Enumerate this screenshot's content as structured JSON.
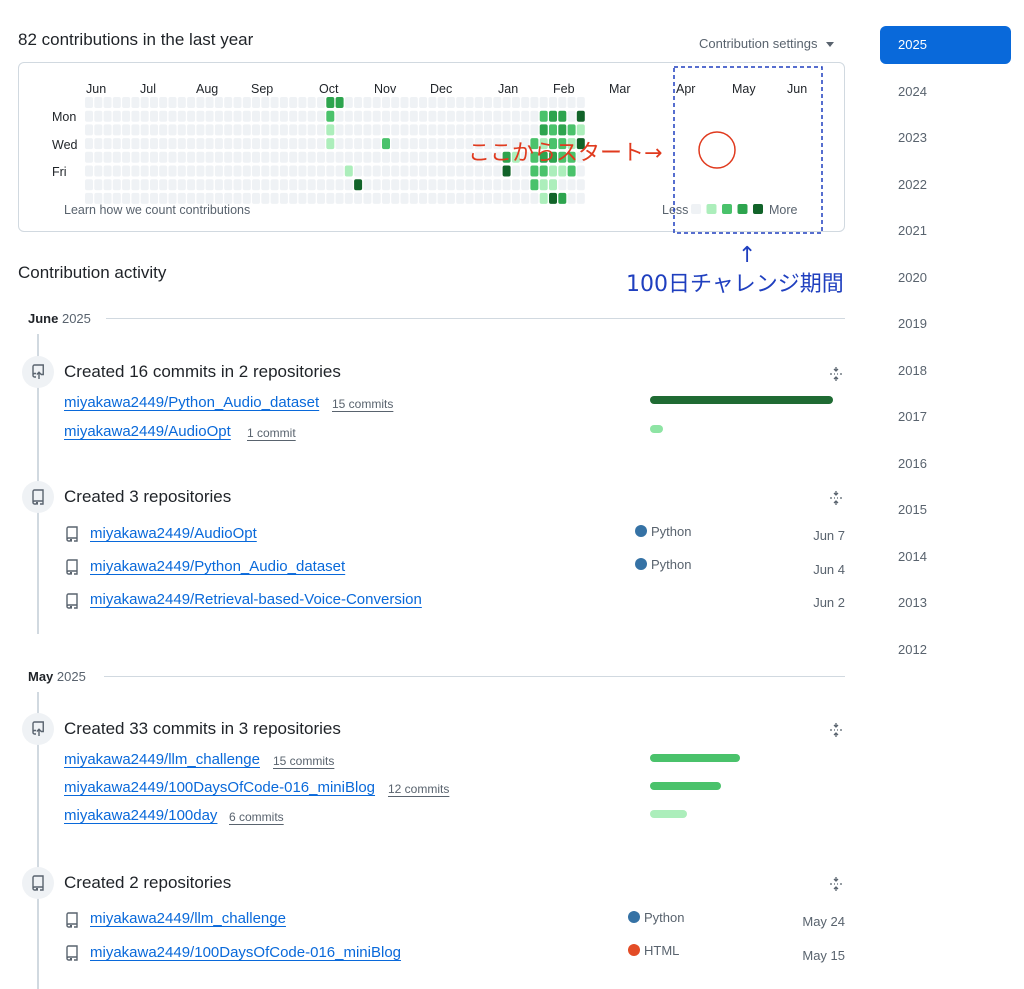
{
  "header": {
    "contributions_title": "82 contributions in the last year",
    "settings_label": "Contribution settings"
  },
  "graph": {
    "months": [
      "Jun",
      "Jul",
      "Aug",
      "Sep",
      "Oct",
      "Nov",
      "Dec",
      "Jan",
      "Feb",
      "Mar",
      "Apr",
      "May",
      "Jun"
    ],
    "day_labels": [
      "Mon",
      "Wed",
      "Fri"
    ],
    "learn_link": "Learn how we count contributions",
    "legend_less": "Less",
    "legend_more": "More",
    "level_colors": [
      "#eff2f5",
      "#aceebb",
      "#4ac26b",
      "#2da44e",
      "#116329"
    ],
    "contributions": [
      {
        "week": 26,
        "day": 0,
        "level": 3
      },
      {
        "week": 26,
        "day": 1,
        "level": 2
      },
      {
        "week": 26,
        "day": 2,
        "level": 1
      },
      {
        "week": 26,
        "day": 3,
        "level": 1
      },
      {
        "week": 27,
        "day": 0,
        "level": 3
      },
      {
        "week": 28,
        "day": 5,
        "level": 1
      },
      {
        "week": 29,
        "day": 6,
        "level": 4
      },
      {
        "week": 32,
        "day": 3,
        "level": 2
      },
      {
        "week": 45,
        "day": 4,
        "level": 3
      },
      {
        "week": 45,
        "day": 5,
        "level": 4
      },
      {
        "week": 46,
        "day": 4,
        "level": 1
      },
      {
        "week": 48,
        "day": 3,
        "level": 2
      },
      {
        "week": 48,
        "day": 4,
        "level": 2
      },
      {
        "week": 48,
        "day": 5,
        "level": 2
      },
      {
        "week": 48,
        "day": 6,
        "level": 2
      },
      {
        "week": 49,
        "day": 1,
        "level": 2
      },
      {
        "week": 49,
        "day": 2,
        "level": 3
      },
      {
        "week": 49,
        "day": 3,
        "level": 1
      },
      {
        "week": 49,
        "day": 4,
        "level": 3
      },
      {
        "week": 49,
        "day": 5,
        "level": 2
      },
      {
        "week": 49,
        "day": 6,
        "level": 1
      },
      {
        "week": 49,
        "day": 7,
        "level": 1
      },
      {
        "week": 50,
        "day": 1,
        "level": 3
      },
      {
        "week": 50,
        "day": 2,
        "level": 2
      },
      {
        "week": 50,
        "day": 3,
        "level": 2
      },
      {
        "week": 50,
        "day": 4,
        "level": 3
      },
      {
        "week": 50,
        "day": 5,
        "level": 1
      },
      {
        "week": 50,
        "day": 6,
        "level": 1
      },
      {
        "week": 50,
        "day": 7,
        "level": 4
      },
      {
        "week": 51,
        "day": 1,
        "level": 3
      },
      {
        "week": 51,
        "day": 2,
        "level": 3
      },
      {
        "week": 51,
        "day": 3,
        "level": 2
      },
      {
        "week": 51,
        "day": 4,
        "level": 2
      },
      {
        "week": 51,
        "day": 5,
        "level": 1
      },
      {
        "week": 51,
        "day": 7,
        "level": 3
      },
      {
        "week": 52,
        "day": 2,
        "level": 2
      },
      {
        "week": 52,
        "day": 3,
        "level": 1
      },
      {
        "week": 52,
        "day": 4,
        "level": 2
      },
      {
        "week": 52,
        "day": 5,
        "level": 2
      },
      {
        "week": 53,
        "day": 1,
        "level": 4
      },
      {
        "week": 53,
        "day": 2,
        "level": 1
      },
      {
        "week": 53,
        "day": 3,
        "level": 4
      }
    ]
  },
  "annotations": {
    "start_label": "ここからスタート→",
    "up_arrow": "↑",
    "period_label": "100日チャレンジ期間"
  },
  "activity": {
    "title": "Contribution activity",
    "sections": [
      {
        "month": "June",
        "year": "2025",
        "commits_title": "Created 16 commits in 2 repositories",
        "commit_repos": [
          {
            "name": "miyakawa2449/Python_Audio_dataset",
            "count": "15 commits",
            "fraction": 1.0,
            "color": "#1f6b33"
          },
          {
            "name": "miyakawa2449/AudioOpt",
            "count": "1 commit",
            "fraction": 0.07,
            "color": "#8ee4a4"
          }
        ],
        "repos_title": "Created 3 repositories",
        "created_repos": [
          {
            "name": "miyakawa2449/AudioOpt",
            "language": "Python",
            "lang_color": "#3572A5",
            "date": "Jun 7"
          },
          {
            "name": "miyakawa2449/Python_Audio_dataset",
            "language": "Python",
            "lang_color": "#3572A5",
            "date": "Jun 4"
          },
          {
            "name": "miyakawa2449/Retrieval-based-Voice-Conversion",
            "language": "",
            "lang_color": "",
            "date": "Jun 2"
          }
        ]
      },
      {
        "month": "May",
        "year": "2025",
        "commits_title": "Created 33 commits in 3 repositories",
        "commit_repos": [
          {
            "name": "miyakawa2449/llm_challenge",
            "count": "15 commits",
            "fraction": 0.49,
            "color": "#4ac26b"
          },
          {
            "name": "miyakawa2449/100DaysOfCode-016_miniBlog",
            "count": "12 commits",
            "fraction": 0.39,
            "color": "#4ac26b"
          },
          {
            "name": "miyakawa2449/100day",
            "count": "6 commits",
            "fraction": 0.2,
            "color": "#aceebb"
          }
        ],
        "repos_title": "Created 2 repositories",
        "created_repos": [
          {
            "name": "miyakawa2449/llm_challenge",
            "language": "Python",
            "lang_color": "#3572A5",
            "date": "May 24"
          },
          {
            "name": "miyakawa2449/100DaysOfCode-016_miniBlog",
            "language": "HTML",
            "lang_color": "#e34c26",
            "date": "May 15"
          }
        ]
      }
    ]
  },
  "years": [
    "2025",
    "2024",
    "2023",
    "2022",
    "2021",
    "2020",
    "2019",
    "2018",
    "2017",
    "2016",
    "2015",
    "2014",
    "2013",
    "2012"
  ],
  "selected_year": "2025"
}
